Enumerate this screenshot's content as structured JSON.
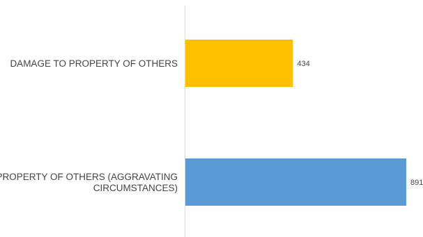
{
  "chart_data": {
    "type": "bar",
    "orientation": "horizontal",
    "title": "",
    "xlabel": "",
    "ylabel": "",
    "categories": [
      [
        "DAMAGE TO PROPERTY OF OTHERS"
      ],
      [
        "DAMAGE TO PROPERTY OF OTHERS (AGGRAVATING",
        "CIRCUMSTANCES)"
      ]
    ],
    "values": [
      434,
      891
    ],
    "colors": [
      "#FFC000",
      "#5B9BD5"
    ],
    "xlim": [
      0,
      900
    ],
    "grid": false,
    "legend": "none",
    "data_labels": true
  }
}
